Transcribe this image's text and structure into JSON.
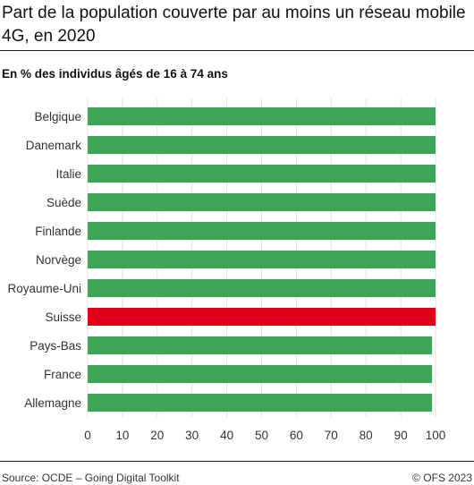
{
  "title": "Part de la population couverte par au moins un réseau mobile 4G, en 2020",
  "subtitle": "En % des individus âgés de 16 à 74 ans",
  "source": "Source: OCDE – Going Digital Toolkit",
  "copyright": "© OFS 2023",
  "colors": {
    "default_bar": "#3ea556",
    "highlight_bar": "#e2001a",
    "grid": "#e0e0e0",
    "text": "#333333"
  },
  "chart_data": {
    "type": "bar",
    "orientation": "horizontal",
    "title": "Part de la population couverte par au moins un réseau mobile 4G, en 2020",
    "subtitle": "En % des individus âgés de 16 à 74 ans",
    "categories": [
      "Belgique",
      "Danemark",
      "Italie",
      "Suède",
      "Finlande",
      "Norvège",
      "Royaume-Uni",
      "Suisse",
      "Pays-Bas",
      "France",
      "Allemagne"
    ],
    "values": [
      100,
      100,
      100,
      100,
      100,
      100,
      100,
      100,
      99,
      99,
      99
    ],
    "highlight": "Suisse",
    "xlim": [
      0,
      100
    ],
    "xticks": [
      0,
      10,
      20,
      30,
      40,
      50,
      60,
      70,
      80,
      90,
      100
    ],
    "xlabel": "",
    "ylabel": "",
    "grid": true,
    "legend": "none"
  }
}
